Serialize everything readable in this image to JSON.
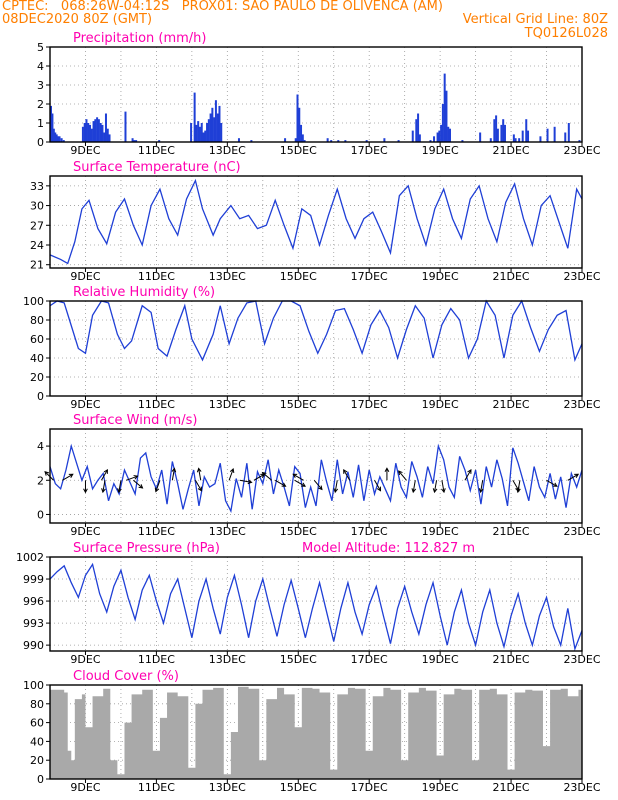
{
  "header": {
    "line1_left": "CPTEC:   068:26W-04:12S   PROX01: SAO PAULO DE OLIVENCA (AM)",
    "line2_left": "08DEC2020 80Z (GMT)",
    "line2_right": "Vertical Grid Line: 80Z",
    "line3_right": "TQ0126L028"
  },
  "colors": {
    "header": "#ff7f00",
    "title": "#ff00b0",
    "series": "#1f3fd6",
    "cloud": "#a9a9a9",
    "grid": "#9a9a9a"
  },
  "x_axis": {
    "ticks": [
      "9DEC",
      "11DEC",
      "13DEC",
      "15DEC",
      "17DEC",
      "19DEC",
      "21DEC",
      "23DEC"
    ]
  },
  "chart_data": [
    {
      "id": "precip",
      "type": "bar",
      "title": "Precipitation (mm/h)",
      "ylim": [
        0,
        5
      ],
      "yticks": [
        "0",
        "1",
        "2",
        "3",
        "4",
        "5"
      ],
      "ytick_values": [
        0,
        1,
        2,
        3,
        4,
        5
      ],
      "xlim_days": [
        8.0,
        23.0
      ],
      "grid": "dotted",
      "x": [
        8.0,
        8.04,
        8.08,
        8.12,
        8.16,
        8.2,
        8.24,
        8.3,
        8.36,
        8.9,
        8.95,
        9.0,
        9.05,
        9.1,
        9.15,
        9.2,
        9.25,
        9.3,
        9.35,
        9.4,
        9.45,
        9.5,
        9.55,
        9.6,
        9.65,
        10.1,
        10.3,
        10.35,
        10.4,
        11.05,
        11.95,
        12.05,
        12.1,
        12.15,
        12.2,
        12.25,
        12.3,
        12.35,
        12.4,
        12.45,
        12.5,
        12.55,
        12.6,
        12.65,
        12.7,
        12.75,
        12.8,
        13.3,
        13.65,
        14.6,
        14.9,
        14.95,
        15.0,
        15.05,
        15.1,
        15.15,
        15.8,
        15.9,
        16.1,
        16.3,
        16.9,
        17.4,
        17.8,
        18.2,
        18.3,
        18.35,
        18.4,
        18.7,
        18.8,
        18.9,
        18.95,
        19.0,
        19.05,
        19.1,
        19.15,
        19.2,
        19.25,
        19.6,
        20.1,
        20.4,
        20.5,
        20.55,
        20.6,
        20.7,
        20.75,
        20.8,
        21.05,
        21.1,
        21.2,
        21.3,
        21.4,
        21.45,
        21.8,
        22.0,
        22.2,
        22.5,
        22.6,
        22.9
      ],
      "values": [
        1.9,
        1.5,
        0.7,
        0.5,
        0.4,
        0.3,
        0.3,
        0.2,
        0.1,
        0.8,
        1.0,
        1.2,
        1.0,
        0.9,
        0.7,
        1.1,
        1.2,
        1.3,
        1.2,
        1.0,
        0.9,
        0.5,
        1.5,
        0.7,
        0.4,
        1.6,
        0.2,
        0.1,
        0.1,
        0.1,
        1.0,
        2.6,
        0.9,
        1.1,
        0.8,
        1.0,
        0.5,
        0.6,
        1.0,
        1.2,
        1.5,
        1.8,
        1.3,
        2.2,
        1.5,
        1.9,
        1.0,
        0.2,
        0.1,
        0.2,
        0.2,
        2.5,
        1.8,
        0.9,
        0.4,
        0.1,
        0.2,
        0.1,
        0.1,
        0.1,
        0.1,
        0.2,
        0.1,
        0.6,
        1.2,
        1.5,
        0.4,
        0.1,
        0.3,
        0.5,
        0.6,
        0.9,
        2.0,
        3.6,
        2.7,
        0.8,
        0.7,
        0.1,
        0.5,
        0.2,
        1.2,
        1.4,
        0.7,
        0.9,
        1.2,
        0.9,
        0.4,
        0.2,
        0.2,
        0.6,
        1.2,
        0.6,
        0.3,
        0.7,
        0.8,
        0.5,
        1.0,
        0.1
      ]
    },
    {
      "id": "temp",
      "type": "line",
      "title": "Surface Temperature (nC)",
      "ylim": [
        20.5,
        34.5
      ],
      "yticks": [
        "21",
        "24",
        "27",
        "30",
        "33"
      ],
      "ytick_values": [
        21,
        24,
        27,
        30,
        33
      ],
      "xlim_days": [
        8.0,
        23.0
      ],
      "grid": "dotted",
      "x": [
        8.0,
        8.3,
        8.5,
        8.7,
        8.9,
        9.1,
        9.35,
        9.6,
        9.85,
        10.1,
        10.35,
        10.6,
        10.85,
        11.1,
        11.35,
        11.6,
        11.85,
        12.1,
        12.3,
        12.6,
        12.8,
        13.1,
        13.35,
        13.6,
        13.85,
        14.1,
        14.35,
        14.6,
        14.85,
        15.1,
        15.35,
        15.6,
        15.85,
        16.1,
        16.35,
        16.6,
        16.85,
        17.1,
        17.35,
        17.6,
        17.85,
        18.1,
        18.35,
        18.6,
        18.85,
        19.1,
        19.35,
        19.6,
        19.85,
        20.1,
        20.35,
        20.6,
        20.85,
        21.1,
        21.35,
        21.6,
        21.85,
        22.1,
        22.35,
        22.6,
        22.85,
        23.0
      ],
      "values": [
        22.5,
        21.8,
        21.2,
        24.5,
        29.5,
        30.8,
        26.5,
        24.2,
        29.0,
        31.0,
        27.0,
        24.0,
        30.0,
        32.5,
        28.0,
        25.5,
        31.0,
        33.8,
        29.5,
        25.5,
        28.0,
        30.0,
        28.0,
        28.5,
        26.5,
        27.0,
        30.8,
        27.0,
        23.5,
        29.5,
        28.5,
        24.0,
        28.5,
        32.5,
        28.0,
        25.0,
        28.0,
        29.0,
        26.0,
        22.8,
        31.5,
        33.0,
        28.0,
        24.0,
        29.5,
        32.5,
        28.0,
        25.0,
        31.0,
        33.0,
        28.0,
        24.5,
        30.5,
        33.3,
        28.0,
        24.0,
        30.0,
        31.5,
        27.5,
        23.5,
        32.5,
        31.0
      ]
    },
    {
      "id": "rh",
      "type": "line",
      "title": "Relative Humidity (%)",
      "ylim": [
        0,
        100
      ],
      "yticks": [
        "0",
        "20",
        "40",
        "60",
        "80",
        "100"
      ],
      "ytick_values": [
        0,
        20,
        40,
        60,
        80,
        100
      ],
      "xlim_days": [
        8.0,
        23.0
      ],
      "grid": "dotted",
      "x": [
        8.0,
        8.2,
        8.4,
        8.55,
        8.8,
        9.0,
        9.2,
        9.45,
        9.65,
        9.9,
        10.1,
        10.3,
        10.6,
        10.85,
        11.05,
        11.3,
        11.55,
        11.8,
        12.0,
        12.3,
        12.6,
        12.8,
        13.05,
        13.3,
        13.55,
        13.8,
        14.05,
        14.3,
        14.55,
        14.8,
        15.05,
        15.3,
        15.55,
        15.8,
        16.05,
        16.3,
        16.55,
        16.8,
        17.05,
        17.3,
        17.55,
        17.8,
        18.05,
        18.3,
        18.55,
        18.8,
        19.05,
        19.3,
        19.55,
        19.8,
        20.05,
        20.3,
        20.55,
        20.8,
        21.05,
        21.3,
        21.55,
        21.8,
        22.05,
        22.3,
        22.55,
        22.8,
        23.0
      ],
      "values": [
        95,
        100,
        98,
        80,
        50,
        45,
        85,
        100,
        98,
        65,
        50,
        58,
        95,
        88,
        50,
        42,
        70,
        95,
        60,
        38,
        65,
        95,
        55,
        82,
        98,
        100,
        55,
        82,
        100,
        100,
        95,
        68,
        45,
        65,
        90,
        92,
        70,
        45,
        75,
        90,
        72,
        40,
        70,
        95,
        82,
        40,
        75,
        92,
        80,
        40,
        60,
        100,
        85,
        40,
        85,
        100,
        72,
        47,
        70,
        85,
        90,
        38,
        55
      ]
    },
    {
      "id": "wind",
      "type": "line",
      "title": "Surface Wind (m/s)",
      "ylim": [
        -0.5,
        5.0
      ],
      "yticks": [
        "0",
        "2",
        "4"
      ],
      "ytick_values": [
        0,
        2,
        4
      ],
      "xlim_days": [
        8.0,
        23.0
      ],
      "grid": "dotted",
      "x": [
        8.0,
        8.15,
        8.3,
        8.45,
        8.6,
        8.75,
        8.9,
        9.05,
        9.2,
        9.35,
        9.5,
        9.65,
        9.8,
        9.95,
        10.1,
        10.25,
        10.4,
        10.55,
        10.7,
        10.85,
        11.0,
        11.15,
        11.3,
        11.45,
        11.6,
        11.75,
        11.9,
        12.05,
        12.2,
        12.35,
        12.5,
        12.65,
        12.8,
        12.95,
        13.1,
        13.25,
        13.4,
        13.55,
        13.7,
        13.85,
        14.0,
        14.15,
        14.3,
        14.45,
        14.6,
        14.75,
        14.9,
        15.05,
        15.2,
        15.35,
        15.5,
        15.65,
        15.8,
        15.95,
        16.1,
        16.25,
        16.4,
        16.55,
        16.7,
        16.85,
        17.0,
        17.15,
        17.3,
        17.45,
        17.6,
        17.75,
        17.9,
        18.05,
        18.2,
        18.35,
        18.5,
        18.65,
        18.8,
        18.95,
        19.1,
        19.25,
        19.4,
        19.55,
        19.7,
        19.85,
        20.0,
        20.15,
        20.3,
        20.45,
        20.6,
        20.75,
        20.9,
        21.05,
        21.2,
        21.35,
        21.5,
        21.65,
        21.8,
        21.95,
        22.1,
        22.25,
        22.4,
        22.55,
        22.7,
        22.85,
        23.0
      ],
      "values": [
        2.8,
        1.8,
        1.5,
        2.6,
        4.0,
        3.0,
        2.0,
        2.8,
        1.5,
        2.0,
        2.4,
        0.8,
        1.8,
        1.2,
        2.6,
        1.9,
        1.2,
        3.3,
        3.6,
        2.2,
        1.5,
        2.6,
        0.6,
        3.1,
        1.8,
        0.3,
        1.5,
        2.6,
        0.5,
        2.2,
        1.6,
        1.8,
        3.0,
        0.8,
        0.2,
        2.1,
        1.0,
        3.0,
        0.3,
        2.5,
        1.8,
        3.2,
        1.2,
        2.6,
        1.6,
        0.5,
        2.8,
        2.4,
        0.4,
        1.6,
        0.5,
        3.2,
        1.9,
        0.8,
        3.2,
        1.2,
        2.5,
        1.0,
        2.9,
        0.8,
        2.6,
        1.2,
        2.2,
        1.5,
        0.8,
        3.0,
        1.6,
        1.0,
        3.1,
        2.2,
        1.0,
        2.8,
        1.8,
        4.0,
        3.2,
        1.6,
        1.0,
        3.4,
        2.6,
        1.4,
        2.6,
        0.6,
        2.8,
        1.6,
        3.2,
        2.1,
        0.5,
        3.9,
        3.0,
        1.9,
        0.8,
        2.8,
        1.6,
        1.0,
        2.4,
        0.9,
        2.2,
        0.4,
        2.4,
        1.6,
        2.6
      ]
    },
    {
      "id": "pres",
      "type": "line",
      "title": "Surface Pressure (hPa)",
      "annotation": "Model Altitude: 112.827 m",
      "ylim": [
        989.2,
        1002.0
      ],
      "yticks": [
        "990",
        "993",
        "996",
        "999",
        "1002"
      ],
      "ytick_values": [
        990,
        993,
        996,
        999,
        1002
      ],
      "xlim_days": [
        8.0,
        23.0
      ],
      "grid": "dotted",
      "x": [
        8.0,
        8.2,
        8.4,
        8.6,
        8.8,
        9.0,
        9.2,
        9.4,
        9.6,
        9.8,
        10.0,
        10.2,
        10.4,
        10.6,
        10.8,
        11.0,
        11.2,
        11.4,
        11.6,
        11.8,
        12.0,
        12.2,
        12.4,
        12.6,
        12.8,
        13.0,
        13.2,
        13.4,
        13.6,
        13.8,
        14.0,
        14.2,
        14.4,
        14.6,
        14.8,
        15.0,
        15.2,
        15.4,
        15.6,
        15.8,
        16.0,
        16.2,
        16.4,
        16.6,
        16.8,
        17.0,
        17.2,
        17.4,
        17.6,
        17.8,
        18.0,
        18.2,
        18.4,
        18.6,
        18.8,
        19.0,
        19.2,
        19.4,
        19.6,
        19.8,
        20.0,
        20.2,
        20.4,
        20.6,
        20.8,
        21.0,
        21.2,
        21.4,
        21.6,
        21.8,
        22.0,
        22.2,
        22.4,
        22.6,
        22.8,
        23.0
      ],
      "values": [
        999.0,
        1000.0,
        1000.8,
        998.5,
        996.5,
        999.5,
        1001.0,
        997.0,
        994.5,
        998.0,
        1000.2,
        996.5,
        993.5,
        997.5,
        999.5,
        996.0,
        993.0,
        997.0,
        999.0,
        995.0,
        991.0,
        996.0,
        999.0,
        995.0,
        991.5,
        996.5,
        999.5,
        995.5,
        991.0,
        996.0,
        999.0,
        995.0,
        991.2,
        995.5,
        998.8,
        995.0,
        991.0,
        995.0,
        998.5,
        994.5,
        990.5,
        995.0,
        998.5,
        994.5,
        991.5,
        995.5,
        998.0,
        994.0,
        990.2,
        995.0,
        998.0,
        994.5,
        991.5,
        995.5,
        998.5,
        994.0,
        990.0,
        994.5,
        997.5,
        993.0,
        990.0,
        994.5,
        997.5,
        993.0,
        989.8,
        994.0,
        997.0,
        993.0,
        990.0,
        994.0,
        996.5,
        992.5,
        990.0,
        995.0,
        989.5,
        992.0
      ]
    },
    {
      "id": "cloud",
      "type": "area",
      "title": "Cloud Cover (%)",
      "ylim": [
        0,
        100
      ],
      "yticks": [
        "0",
        "20",
        "40",
        "60",
        "80",
        "100"
      ],
      "ytick_values": [
        0,
        20,
        40,
        60,
        80,
        100
      ],
      "xlim_days": [
        8.0,
        23.0
      ],
      "grid": "dotted",
      "x": [
        8.0,
        8.4,
        8.5,
        8.6,
        8.7,
        8.9,
        9.0,
        9.2,
        9.5,
        9.7,
        9.9,
        10.1,
        10.3,
        10.6,
        10.9,
        11.1,
        11.3,
        11.6,
        11.9,
        12.1,
        12.3,
        12.6,
        12.9,
        13.1,
        13.3,
        13.6,
        13.9,
        14.1,
        14.4,
        14.6,
        14.9,
        15.1,
        15.4,
        15.6,
        15.9,
        16.1,
        16.4,
        16.6,
        16.9,
        17.1,
        17.4,
        17.6,
        17.9,
        18.1,
        18.4,
        18.6,
        18.9,
        19.1,
        19.4,
        19.6,
        19.9,
        20.1,
        20.4,
        20.6,
        20.9,
        21.1,
        21.4,
        21.6,
        21.9,
        22.1,
        22.4,
        22.6,
        22.9,
        23.0
      ],
      "values": [
        95,
        92,
        30,
        20,
        85,
        90,
        55,
        88,
        96,
        20,
        5,
        60,
        90,
        95,
        30,
        65,
        92,
        88,
        12,
        80,
        95,
        97,
        5,
        50,
        98,
        96,
        20,
        85,
        97,
        90,
        55,
        97,
        96,
        92,
        10,
        90,
        97,
        96,
        30,
        88,
        97,
        95,
        20,
        92,
        97,
        94,
        25,
        90,
        96,
        95,
        20,
        95,
        96,
        90,
        10,
        92,
        95,
        94,
        35,
        95,
        96,
        88,
        95,
        96
      ]
    }
  ]
}
